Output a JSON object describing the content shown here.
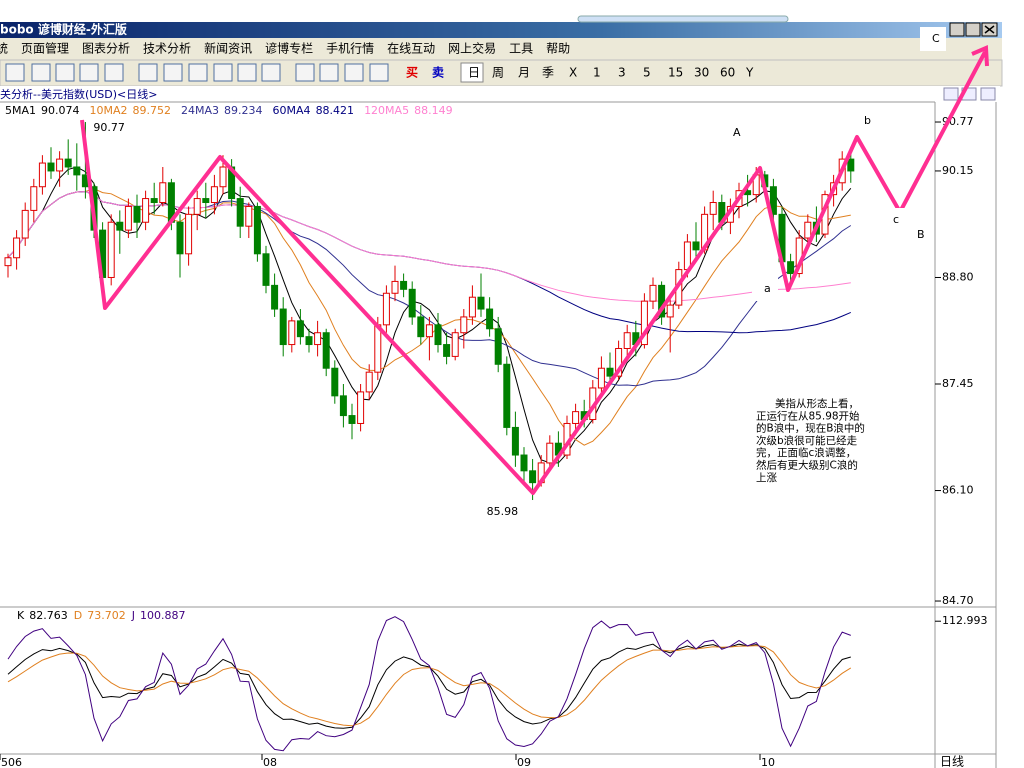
{
  "window": {
    "title": "bobo 谚博财经-外汇版"
  },
  "menu": [
    "统",
    "页面管理",
    "图表分析",
    "技术分析",
    "新闻资讯",
    "谚博专栏",
    "手机行情",
    "在线互动",
    "网上交易",
    "工具",
    "帮助"
  ],
  "toolbar": {
    "trade": [
      "买",
      "卖"
    ],
    "periods": [
      "日",
      "周",
      "月",
      "季",
      "X",
      "1",
      "3",
      "5",
      "15",
      "30",
      "60",
      "Y"
    ]
  },
  "chart": {
    "header": "关分析--美元指数(USD)<日线>",
    "ma": [
      {
        "name": "5MA1",
        "value": 90.074,
        "color": "#000000"
      },
      {
        "name": "10MA2",
        "value": 89.752,
        "color": "#e08020"
      },
      {
        "name": "24MA3",
        "value": 89.234,
        "color": "#303090"
      },
      {
        "name": "60MA4",
        "value": 88.421,
        "color": "#000080"
      },
      {
        "name": "120MA5",
        "value": 88.149,
        "color": "#ff80d0"
      }
    ],
    "ylim": [
      84.637,
      91.049
    ],
    "yticks": [
      90.77,
      90.15,
      {
        "value": 88.8,
        "label": "88.80"
      },
      87.45,
      {
        "value": 86.1,
        "label": "86.10"
      },
      {
        "value": 84.7,
        "label": "84.70"
      }
    ],
    "high_label": 90.77,
    "low_label": 85.98,
    "candles": [
      [
        88.95,
        89.1,
        88.8,
        89.05
      ],
      [
        89.05,
        89.4,
        88.9,
        89.3
      ],
      [
        89.3,
        89.75,
        89.2,
        89.65
      ],
      [
        89.65,
        90.05,
        89.5,
        89.95
      ],
      [
        89.95,
        90.35,
        89.85,
        90.25
      ],
      [
        90.25,
        90.45,
        90.05,
        90.15
      ],
      [
        90.15,
        90.4,
        89.95,
        90.3
      ],
      [
        90.3,
        90.55,
        90.1,
        90.2
      ],
      [
        90.2,
        90.5,
        89.9,
        90.1
      ],
      [
        90.1,
        90.77,
        89.8,
        89.95
      ],
      [
        89.95,
        90.0,
        89.3,
        89.4
      ],
      [
        89.4,
        89.5,
        88.6,
        88.8
      ],
      [
        88.8,
        89.6,
        88.7,
        89.5
      ],
      [
        89.5,
        89.65,
        89.1,
        89.4
      ],
      [
        89.4,
        89.8,
        89.3,
        89.7
      ],
      [
        89.7,
        89.85,
        89.3,
        89.5
      ],
      [
        89.5,
        89.9,
        89.4,
        89.8
      ],
      [
        89.8,
        90.0,
        89.6,
        89.75
      ],
      [
        89.75,
        90.2,
        89.7,
        90.0
      ],
      [
        90.0,
        90.05,
        89.4,
        89.5
      ],
      [
        89.5,
        89.6,
        88.8,
        89.1
      ],
      [
        89.1,
        89.7,
        88.95,
        89.6
      ],
      [
        89.6,
        89.9,
        89.4,
        89.8
      ],
      [
        89.8,
        90.0,
        89.55,
        89.75
      ],
      [
        89.75,
        90.1,
        89.6,
        89.95
      ],
      [
        89.95,
        90.35,
        89.85,
        90.2
      ],
      [
        90.2,
        90.3,
        89.7,
        89.8
      ],
      [
        89.8,
        89.95,
        89.3,
        89.45
      ],
      [
        89.45,
        89.75,
        89.3,
        89.7
      ],
      [
        89.7,
        89.75,
        89.0,
        89.1
      ],
      [
        89.1,
        89.2,
        88.6,
        88.7
      ],
      [
        88.7,
        88.85,
        88.3,
        88.4
      ],
      [
        88.4,
        88.55,
        87.8,
        87.95
      ],
      [
        87.95,
        88.3,
        87.85,
        88.25
      ],
      [
        88.25,
        88.4,
        87.95,
        88.05
      ],
      [
        88.05,
        88.15,
        87.85,
        87.95
      ],
      [
        87.95,
        88.25,
        87.8,
        88.1
      ],
      [
        88.1,
        88.15,
        87.55,
        87.65
      ],
      [
        87.65,
        87.75,
        87.2,
        87.3
      ],
      [
        87.3,
        87.45,
        86.9,
        87.05
      ],
      [
        87.05,
        87.2,
        86.75,
        86.95
      ],
      [
        86.95,
        87.45,
        86.85,
        87.35
      ],
      [
        87.35,
        87.7,
        87.25,
        87.6
      ],
      [
        87.6,
        88.3,
        87.5,
        88.2
      ],
      [
        88.2,
        88.7,
        88.1,
        88.6
      ],
      [
        88.6,
        88.95,
        88.5,
        88.75
      ],
      [
        88.75,
        88.85,
        88.55,
        88.65
      ],
      [
        88.65,
        88.75,
        88.2,
        88.3
      ],
      [
        88.3,
        88.45,
        87.95,
        88.05
      ],
      [
        88.05,
        88.3,
        87.75,
        88.2
      ],
      [
        88.2,
        88.35,
        87.85,
        87.95
      ],
      [
        87.95,
        88.1,
        87.7,
        87.8
      ],
      [
        87.8,
        88.15,
        87.75,
        88.1
      ],
      [
        88.1,
        88.4,
        87.9,
        88.3
      ],
      [
        88.3,
        88.7,
        88.2,
        88.55
      ],
      [
        88.55,
        88.85,
        88.3,
        88.4
      ],
      [
        88.4,
        88.55,
        88.05,
        88.15
      ],
      [
        88.15,
        88.3,
        87.6,
        87.7
      ],
      [
        87.7,
        87.8,
        86.8,
        86.9
      ],
      [
        86.9,
        87.1,
        86.4,
        86.55
      ],
      [
        86.55,
        86.65,
        86.2,
        86.35
      ],
      [
        86.35,
        86.5,
        85.98,
        86.2
      ],
      [
        86.2,
        86.55,
        86.15,
        86.45
      ],
      [
        86.45,
        86.8,
        86.35,
        86.7
      ],
      [
        86.7,
        86.85,
        86.4,
        86.55
      ],
      [
        86.55,
        87.05,
        86.5,
        86.95
      ],
      [
        86.95,
        87.2,
        86.8,
        87.1
      ],
      [
        87.1,
        87.25,
        86.9,
        87.0
      ],
      [
        87.0,
        87.5,
        86.95,
        87.4
      ],
      [
        87.4,
        87.8,
        87.3,
        87.65
      ],
      [
        87.65,
        87.85,
        87.45,
        87.55
      ],
      [
        87.55,
        88.0,
        87.5,
        87.9
      ],
      [
        87.9,
        88.2,
        87.75,
        88.1
      ],
      [
        88.1,
        88.25,
        87.8,
        87.95
      ],
      [
        87.95,
        88.6,
        87.9,
        88.5
      ],
      [
        88.5,
        88.8,
        88.4,
        88.7
      ],
      [
        88.7,
        88.75,
        88.2,
        88.3
      ],
      [
        88.3,
        88.55,
        87.85,
        88.45
      ],
      [
        88.45,
        89.0,
        88.4,
        88.9
      ],
      [
        88.9,
        89.35,
        88.8,
        89.25
      ],
      [
        89.25,
        89.5,
        89.05,
        89.15
      ],
      [
        89.15,
        89.7,
        89.1,
        89.6
      ],
      [
        89.6,
        89.9,
        89.4,
        89.75
      ],
      [
        89.75,
        89.85,
        89.4,
        89.5
      ],
      [
        89.5,
        89.8,
        89.35,
        89.7
      ],
      [
        89.7,
        90.0,
        89.55,
        89.9
      ],
      [
        89.9,
        90.1,
        89.7,
        89.85
      ],
      [
        89.85,
        90.2,
        89.75,
        90.1
      ],
      [
        90.1,
        90.15,
        89.85,
        89.95
      ],
      [
        89.95,
        90.05,
        89.5,
        89.6
      ],
      [
        89.6,
        89.7,
        88.9,
        89.0
      ],
      [
        89.0,
        89.1,
        88.7,
        88.85
      ],
      [
        88.85,
        89.4,
        88.8,
        89.3
      ],
      [
        89.3,
        89.6,
        89.2,
        89.5
      ],
      [
        89.5,
        89.7,
        89.25,
        89.35
      ],
      [
        89.35,
        89.9,
        89.3,
        89.85
      ],
      [
        89.85,
        90.1,
        89.7,
        90.0
      ],
      [
        90.0,
        90.4,
        89.9,
        90.3
      ],
      [
        90.3,
        90.45,
        90.0,
        90.15
      ]
    ],
    "wave_labels": [
      "A",
      "b",
      "C",
      "c",
      "B",
      "a"
    ],
    "note": [
      "美指从形态上看，",
      "正运行在从85.98开始",
      "的B浪中，现在B浪中的",
      "次级b浪很可能已经走",
      "完，正面临c浪调整，",
      "然后有更大级别C浪的",
      "上涨"
    ]
  },
  "indicator": {
    "k": 82.763,
    "d": 73.702,
    "j": 100.887,
    "names": [
      "K",
      "D",
      "J"
    ],
    "ylim": [
      -15,
      122
    ],
    "ytick": 112.993
  },
  "xaxis": [
    "506",
    "08",
    "09",
    "10"
  ],
  "period_label": "日线"
}
